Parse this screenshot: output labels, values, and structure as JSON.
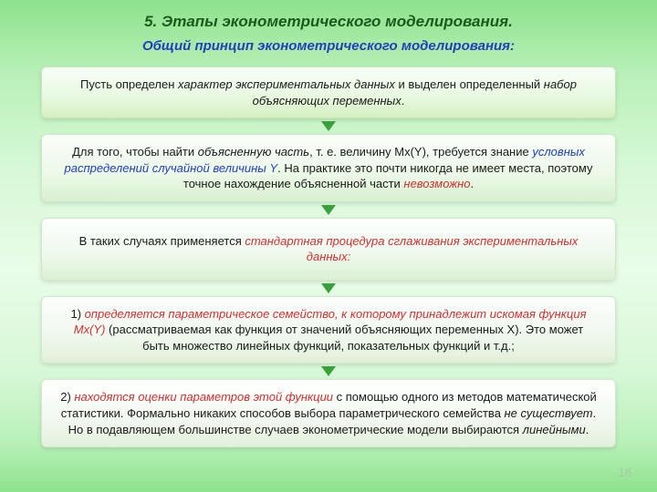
{
  "title": "5. Этапы эконометрического моделирования.",
  "subtitle": "Общий принцип эконометрического моделирования:",
  "cards": {
    "c1": {
      "p1a": "Пусть определен ",
      "p1b": "характер экспериментальных данных",
      "p1c": " и выделен определенный ",
      "p1d": "набор объясняющих переменных",
      "p1e": "."
    },
    "c2": {
      "p1a": "Для того, чтобы найти ",
      "p1b": "объясненную часть",
      "p1c": ", т. е. величину Мх(Y), требуется знание ",
      "p1d": "условных распределений случайной величины Y",
      "p1e": ". На практике это почти никогда не имеет места, поэтому точное нахождение объясненной части ",
      "p1f": "невозможно",
      "p1g": "."
    },
    "c3": {
      "p1a": "В таких случаях применяется ",
      "p1b": "стандартная процедура сглаживания экспериментальных данных:"
    },
    "c4": {
      "p1a": "1) ",
      "p1b": "определяется параметрическое семейство, к которому принадлежит искомая функция Мх(Y)",
      "p1c": " (рассматриваемая как функция от значений объясняющих переменных Х). Это может быть множество линейных функций, показательных функций и т.д.;"
    },
    "c5": {
      "p1a": "2) ",
      "p1b": "находятся оценки параметров этой функции",
      "p1c": " с помощью одного из методов математической статистики. Формально никаких способов выбора параметрического семейства ",
      "p1d": "не существует",
      "p1e": ". Но в подавляющем большинстве случаев эконометрические модели выбираются ",
      "p1f": "линейными",
      "p1g": "."
    }
  },
  "page_number": "16"
}
